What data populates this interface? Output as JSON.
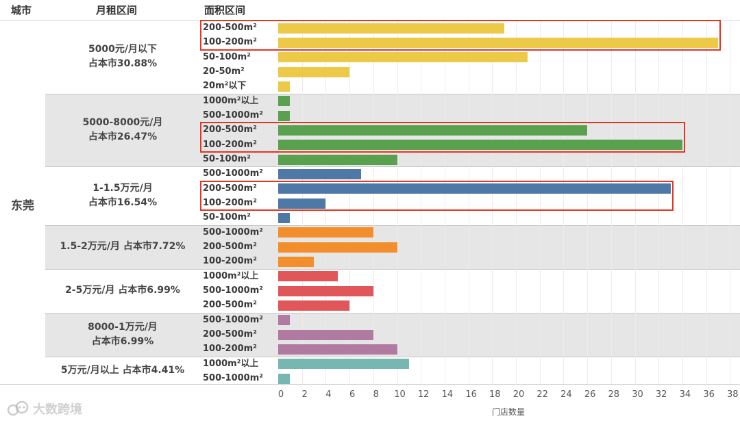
{
  "headers": {
    "city": "城市",
    "rent": "月租区间",
    "area": "面积区间"
  },
  "city": "东莞",
  "groups": [
    {
      "label_lines": [
        "5000元/月以下",
        "占本市30.88%"
      ],
      "shaded": false,
      "color": "#EDC948",
      "rows": [
        {
          "label": "200-500m²",
          "value": 19
        },
        {
          "label": "100-200m²",
          "value": 37
        },
        {
          "label": "50-100m²",
          "value": 21
        },
        {
          "label": "20-50m²",
          "value": 6
        },
        {
          "label": "20m²以下",
          "value": 1
        }
      ]
    },
    {
      "label_lines": [
        "5000-8000元/月",
        "占本市26.47%"
      ],
      "shaded": true,
      "color": "#59A14F",
      "rows": [
        {
          "label": "1000m²以上",
          "value": 1
        },
        {
          "label": "500-1000m²",
          "value": 1
        },
        {
          "label": "200-500m²",
          "value": 26
        },
        {
          "label": "100-200m²",
          "value": 34
        },
        {
          "label": "50-100m²",
          "value": 10
        }
      ]
    },
    {
      "label_lines": [
        "1-1.5万元/月",
        "占本市16.54%"
      ],
      "shaded": false,
      "color": "#4E79A7",
      "rows": [
        {
          "label": "500-1000m²",
          "value": 7
        },
        {
          "label": "200-500m²",
          "value": 33
        },
        {
          "label": "100-200m²",
          "value": 4
        },
        {
          "label": "50-100m²",
          "value": 1
        }
      ]
    },
    {
      "label_lines": [
        "1.5-2万元/月  占本市7.72%"
      ],
      "shaded": true,
      "color": "#F28E2B",
      "rows": [
        {
          "label": "500-1000m²",
          "value": 8
        },
        {
          "label": "200-500m²",
          "value": 10
        },
        {
          "label": "100-200m²",
          "value": 3
        }
      ]
    },
    {
      "label_lines": [
        "2-5万元/月  占本市6.99%"
      ],
      "shaded": false,
      "color": "#E15759",
      "rows": [
        {
          "label": "1000m²以上",
          "value": 5
        },
        {
          "label": "500-1000m²",
          "value": 8
        },
        {
          "label": "200-500m²",
          "value": 6
        }
      ]
    },
    {
      "label_lines": [
        "8000-1万元/月",
        "占本市6.99%"
      ],
      "shaded": true,
      "color": "#B07AA1",
      "rows": [
        {
          "label": "500-1000m²",
          "value": 1
        },
        {
          "label": "200-500m²",
          "value": 8
        },
        {
          "label": "100-200m²",
          "value": 10
        }
      ]
    },
    {
      "label_lines": [
        "5万元/月以上  占本市4.41%"
      ],
      "shaded": false,
      "color": "#76B7B2",
      "rows": [
        {
          "label": "1000m²以上",
          "value": 11
        },
        {
          "label": "500-1000m²",
          "value": 1
        }
      ]
    }
  ],
  "highlights": [
    {
      "group": 0,
      "rows": [
        0,
        1
      ]
    },
    {
      "group": 1,
      "rows": [
        2,
        3
      ]
    },
    {
      "group": 2,
      "rows": [
        1,
        2
      ]
    }
  ],
  "chart_data": {
    "type": "bar",
    "orientation": "horizontal",
    "title": "",
    "xlabel": "门店数量",
    "ylabel": "面积区间",
    "xlim": [
      0,
      38
    ],
    "xticks": [
      0,
      2,
      4,
      6,
      8,
      10,
      12,
      14,
      16,
      18,
      20,
      22,
      24,
      26,
      28,
      30,
      32,
      34,
      36,
      38
    ],
    "grid": true,
    "legend": "none",
    "series": [
      {
        "name": "5000元/月以下",
        "categories": [
          "200-500m²",
          "100-200m²",
          "50-100m²",
          "20-50m²",
          "20m²以下"
        ],
        "values": [
          19,
          37,
          21,
          6,
          1
        ]
      },
      {
        "name": "5000-8000元/月",
        "categories": [
          "1000m²以上",
          "500-1000m²",
          "200-500m²",
          "100-200m²",
          "50-100m²"
        ],
        "values": [
          1,
          1,
          26,
          34,
          10
        ]
      },
      {
        "name": "1-1.5万元/月",
        "categories": [
          "500-1000m²",
          "200-500m²",
          "100-200m²",
          "50-100m²"
        ],
        "values": [
          7,
          33,
          4,
          1
        ]
      },
      {
        "name": "1.5-2万元/月",
        "categories": [
          "500-1000m²",
          "200-500m²",
          "100-200m²"
        ],
        "values": [
          8,
          10,
          3
        ]
      },
      {
        "name": "2-5万元/月",
        "categories": [
          "1000m²以上",
          "500-1000m²",
          "200-500m²"
        ],
        "values": [
          5,
          8,
          6
        ]
      },
      {
        "name": "8000-1万元/月",
        "categories": [
          "500-1000m²",
          "200-500m²",
          "100-200m²"
        ],
        "values": [
          1,
          8,
          10
        ]
      },
      {
        "name": "5万元/月以上",
        "categories": [
          "1000m²以上",
          "500-1000m²"
        ],
        "values": [
          11,
          1
        ]
      }
    ]
  },
  "watermark": "大数跨境"
}
